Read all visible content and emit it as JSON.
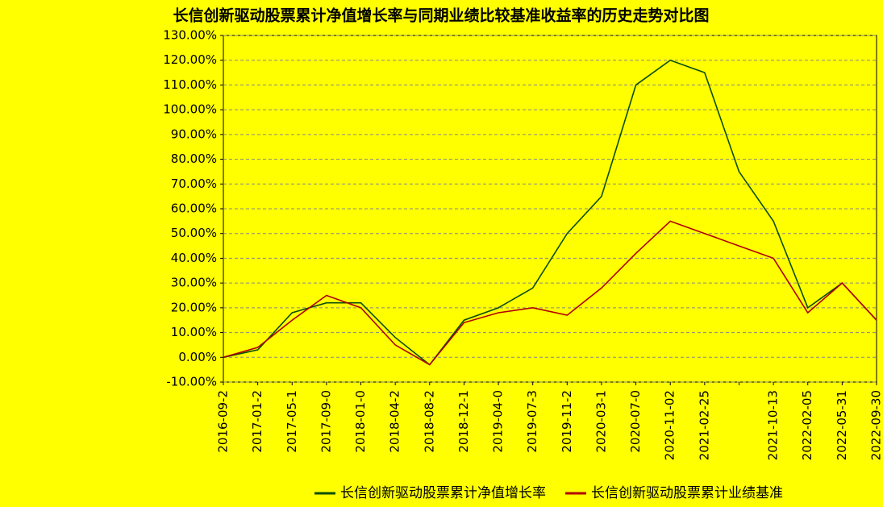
{
  "chart_data": {
    "type": "line",
    "title": "长信创新驱动股票累计净值增长率与同期业绩比较基准收益率的历史走势对比图",
    "categories": [
      "2016-09-2",
      "2017-01-2",
      "2017-05-1",
      "2017-09-0",
      "2018-01-0",
      "2018-04-2",
      "2018-08-2",
      "2018-12-1",
      "2019-04-0",
      "2019-07-3",
      "2019-11-2",
      "2020-03-1",
      "2020-07-0",
      "2020-11-02",
      "2021-02-25",
      null,
      "2021-10-13",
      "2022-02-05",
      "2022-05-31",
      "2022-09-30"
    ],
    "series": [
      {
        "name": "长信创新驱动股票累计净值增长率",
        "color": "#0b4d0b",
        "values": [
          0,
          3,
          18,
          22,
          22,
          8,
          -3,
          15,
          20,
          28,
          50,
          65,
          110,
          120,
          115,
          75,
          55,
          20,
          30,
          15
        ]
      },
      {
        "name": "长信创新驱动股票累计业绩基准",
        "color": "#b00000",
        "values": [
          0,
          4,
          15,
          25,
          20,
          5,
          -3,
          14,
          18,
          20,
          17,
          28,
          42,
          55,
          50,
          45,
          40,
          18,
          30,
          15
        ]
      }
    ],
    "ylim": [
      -10,
      130
    ],
    "yticks": [
      {
        "value": -10,
        "label": "-10.00%"
      },
      {
        "value": 0,
        "label": "0.00%"
      },
      {
        "value": 10,
        "label": "10.00%"
      },
      {
        "value": 20,
        "label": "20.00%"
      },
      {
        "value": 30,
        "label": "30.00%"
      },
      {
        "value": 40,
        "label": "40.00%"
      },
      {
        "value": 50,
        "label": "50.00%"
      },
      {
        "value": 60,
        "label": "60.00%"
      },
      {
        "value": 70,
        "label": "70.00%"
      },
      {
        "value": 80,
        "label": "80.00%"
      },
      {
        "value": 90,
        "label": "90.00%"
      },
      {
        "value": 100,
        "label": "100.00%"
      },
      {
        "value": 110,
        "label": "110.00%"
      },
      {
        "value": 120,
        "label": "120.00%"
      },
      {
        "value": 130,
        "label": "130.00%"
      }
    ],
    "grid": true
  }
}
